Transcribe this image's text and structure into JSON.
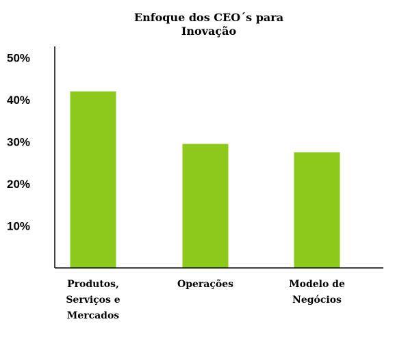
{
  "chart_data": {
    "type": "bar",
    "title_lines": [
      "Enfoque dos CEO´s para",
      "Inovação"
    ],
    "categories": [
      [
        "Produtos,",
        "Serviços e",
        "Mercados"
      ],
      [
        "Operações"
      ],
      [
        "Modelo de",
        "Negócios"
      ]
    ],
    "values": [
      42,
      29.5,
      27.5
    ],
    "yticks": [
      "10%",
      "20%",
      "30%",
      "40%",
      "50%"
    ],
    "ytick_values": [
      10,
      20,
      30,
      40,
      50
    ],
    "ylim": [
      0,
      50
    ],
    "bar_color": "#8dc91b",
    "grid": false,
    "legend": "none"
  }
}
